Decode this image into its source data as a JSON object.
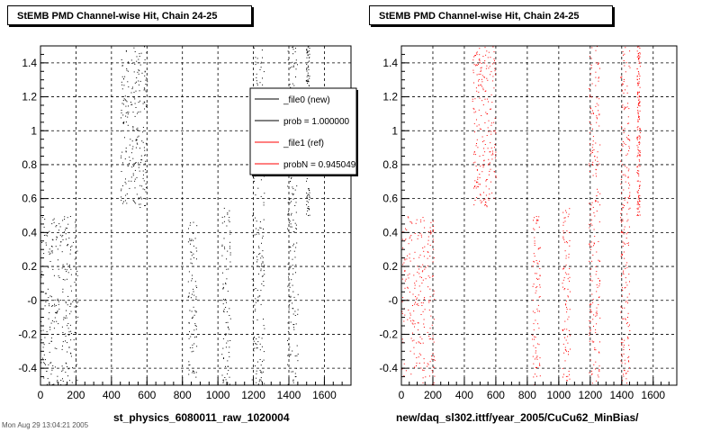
{
  "panels": [
    {
      "title": "StEMB PMD Channel-wise Hit, Chain 24-25",
      "xlabel": "st_physics_6080011_raw_1020004"
    },
    {
      "title": "StEMB PMD Channel-wise Hit, Chain 24-25",
      "xlabel": "new/daq_sl302.ittf/year_2005/CuCu62_MinBias/"
    }
  ],
  "legend": {
    "entries": [
      {
        "label": "_file0 (new)",
        "color": "#000000"
      },
      {
        "label": "prob = 1.000000",
        "color": "#000000"
      },
      {
        "label": "_file1 (ref)",
        "color": "#ff0000"
      },
      {
        "label": "probN = 0.945049",
        "color": "#ff0000"
      }
    ]
  },
  "footer": "Mon Aug 29 13:04:21 2005",
  "colors": {
    "new": "#000000",
    "ref": "#ff0000"
  },
  "chart_data": [
    {
      "type": "scatter",
      "title": "StEMB PMD Channel-wise Hit, Chain 24-25",
      "xlabel": "st_physics_6080011_raw_1020004",
      "ylabel": "",
      "xlim": [
        0,
        1750
      ],
      "ylim": [
        -0.5,
        1.5
      ],
      "xticks": [
        0,
        200,
        400,
        600,
        800,
        1000,
        1200,
        1400,
        1600
      ],
      "yticks": [
        -0.4,
        -0.2,
        0,
        0.2,
        0.4,
        0.6,
        0.8,
        1,
        1.2,
        1.4
      ],
      "ytick_labels": [
        "-0.4",
        "-0.2",
        "-0",
        "0.2",
        "0.4",
        "0.6",
        "0.8",
        "1",
        "1.2",
        "1.4"
      ],
      "grid": true,
      "legend_position": "top-right",
      "series": [
        {
          "name": "_file0 (new)",
          "color": "#000000",
          "bands": [
            {
              "x": [
                0,
                210
              ],
              "y": [
                -0.5,
                0.5
              ],
              "n": 260
            },
            {
              "x": [
                450,
                600
              ],
              "y": [
                0.55,
                1.5
              ],
              "n": 230
            },
            {
              "x": [
                830,
                880
              ],
              "y": [
                -0.5,
                0.5
              ],
              "n": 90
            },
            {
              "x": [
                1020,
                1070
              ],
              "y": [
                -0.5,
                0.55
              ],
              "n": 90
            },
            {
              "x": [
                1190,
                1260
              ],
              "y": [
                -0.5,
                1.5
              ],
              "n": 200
            },
            {
              "x": [
                1390,
                1450
              ],
              "y": [
                -0.5,
                1.5
              ],
              "n": 210
            },
            {
              "x": [
                1495,
                1515
              ],
              "y": [
                0.5,
                1.5
              ],
              "n": 140
            }
          ]
        },
        {
          "name": "_file1 (ref)",
          "color": "#ff0000",
          "bands": []
        }
      ]
    },
    {
      "type": "scatter",
      "title": "StEMB PMD Channel-wise Hit, Chain 24-25",
      "xlabel": "new/daq_sl302.ittf/year_2005/CuCu62_MinBias/",
      "ylabel": "",
      "xlim": [
        0,
        1750
      ],
      "ylim": [
        -0.5,
        1.5
      ],
      "xticks": [
        0,
        200,
        400,
        600,
        800,
        1000,
        1200,
        1400,
        1600
      ],
      "yticks": [
        -0.4,
        -0.2,
        0,
        0.2,
        0.4,
        0.6,
        0.8,
        1,
        1.2,
        1.4
      ],
      "ytick_labels": [
        "-0.4",
        "-0.2",
        "-0",
        "0.2",
        "0.4",
        "0.6",
        "0.8",
        "1",
        "1.2",
        "1.4"
      ],
      "grid": true,
      "series": [
        {
          "name": "_file1 (ref)",
          "color": "#ff0000",
          "bands": [
            {
              "x": [
                0,
                210
              ],
              "y": [
                -0.5,
                0.5
              ],
              "n": 240
            },
            {
              "x": [
                450,
                600
              ],
              "y": [
                0.55,
                1.5
              ],
              "n": 220
            },
            {
              "x": [
                830,
                880
              ],
              "y": [
                -0.5,
                0.5
              ],
              "n": 90
            },
            {
              "x": [
                1020,
                1070
              ],
              "y": [
                -0.5,
                0.55
              ],
              "n": 90
            },
            {
              "x": [
                1190,
                1260
              ],
              "y": [
                -0.5,
                1.5
              ],
              "n": 200
            },
            {
              "x": [
                1390,
                1450
              ],
              "y": [
                -0.5,
                1.5
              ],
              "n": 200
            },
            {
              "x": [
                1495,
                1515
              ],
              "y": [
                0.5,
                1.5
              ],
              "n": 160
            }
          ]
        }
      ]
    }
  ]
}
